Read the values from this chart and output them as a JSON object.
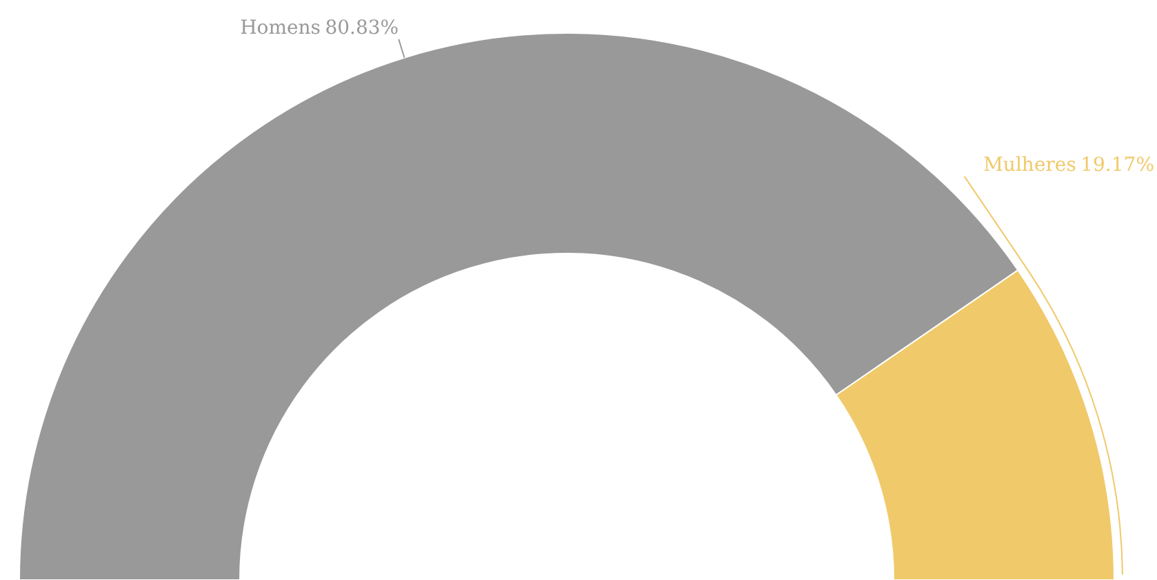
{
  "chart_data": {
    "type": "donut",
    "categories": [
      "Homens",
      "Mulheres"
    ],
    "values": [
      80.83,
      19.17
    ],
    "value_labels": [
      "80.83%",
      "19.17%"
    ],
    "colors": [
      "#999999",
      "#f0c96a"
    ]
  }
}
